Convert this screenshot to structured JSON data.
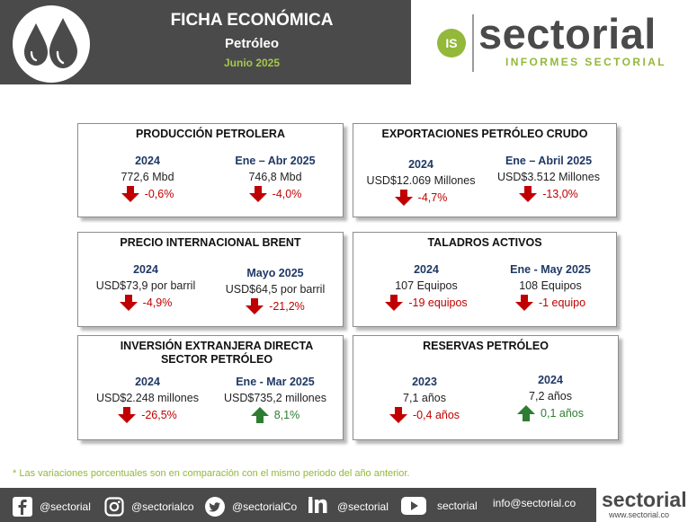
{
  "header": {
    "title": "FICHA ECONÓMICA",
    "subtitle": "Petróleo",
    "date": "Junio 2025"
  },
  "brand": {
    "badge": "IS",
    "name": "sectorial",
    "tagline": "INFORMES SECTORIAL"
  },
  "colors": {
    "negative": "#c00000",
    "positive": "#2e7d32",
    "accent": "#93b83a",
    "dark": "#4a4a4a"
  },
  "cards": [
    {
      "title": "PRODUCCIÓN PETROLERA",
      "cols": [
        {
          "year": "2024",
          "value": "772,6 Mbd",
          "change": "-0,6%",
          "direction": "down"
        },
        {
          "year": "Ene – Abr 2025",
          "value": "746,8 Mbd",
          "change": "-4,0%",
          "direction": "down"
        }
      ]
    },
    {
      "title": "EXPORTACIONES PETRÓLEO CRUDO",
      "cols": [
        {
          "year": "2024",
          "value": "USD$12.069 Millones",
          "change": "-4,7%",
          "direction": "down"
        },
        {
          "year": "Ene – Abril 2025",
          "value": "USD$3.512 Millones",
          "change": "-13,0%",
          "direction": "down"
        }
      ]
    },
    {
      "title": "PRECIO INTERNACIONAL BRENT",
      "cols": [
        {
          "year": "2024",
          "value": "USD$73,9 por barril",
          "change": "-4,9%",
          "direction": "down"
        },
        {
          "year": "Mayo 2025",
          "value": "USD$64,5 por barril",
          "change": "-21,2%",
          "direction": "down"
        }
      ]
    },
    {
      "title": "TALADROS ACTIVOS",
      "cols": [
        {
          "year": "2024",
          "value": "107 Equipos",
          "change": "-19 equipos",
          "direction": "down"
        },
        {
          "year": "Ene - May 2025",
          "value": "108 Equipos",
          "change": "-1 equipo",
          "direction": "down"
        }
      ]
    },
    {
      "title": "INVERSIÓN EXTRANJERA DIRECTA SECTOR PETRÓLEO",
      "cols": [
        {
          "year": "2024",
          "value": "USD$2.248 millones",
          "change": "-26,5%",
          "direction": "down"
        },
        {
          "year": "Ene - Mar 2025",
          "value": "USD$735,2 millones",
          "change": "8,1%",
          "direction": "up"
        }
      ]
    },
    {
      "title": "RESERVAS PETRÓLEO",
      "cols": [
        {
          "year": "2023",
          "value": "7,1 años",
          "change": "-0,4 años",
          "direction": "down"
        },
        {
          "year": "2024",
          "value": "7,2 años",
          "change": "0,1 años",
          "direction": "up"
        }
      ]
    }
  ],
  "note": "* Las variaciones porcentuales son en comparación con el mismo periodo del año anterior.",
  "footer": {
    "facebook": "@sectorial",
    "instagram": "@sectorialco",
    "twitter": "@sectorialCo",
    "linkedin": "@sectorial",
    "youtube": "sectorial",
    "email": "info@sectorial.co",
    "brand_name": "sectorial",
    "brand_url": "www.sectorial.co"
  }
}
